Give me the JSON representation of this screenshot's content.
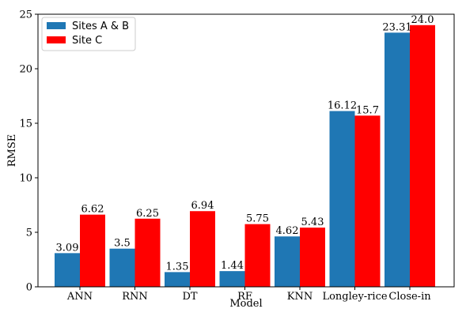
{
  "chart_data": {
    "type": "bar",
    "categories": [
      "ANN",
      "RNN",
      "DT",
      "RF",
      "KNN",
      "Longley-rice",
      "Close-in"
    ],
    "series": [
      {
        "name": "Sites A & B",
        "values": [
          3.09,
          3.5,
          1.35,
          1.44,
          4.62,
          16.12,
          23.31
        ],
        "labels": [
          "3.09",
          "3.5",
          "1.35",
          "1.44",
          "4.62",
          "16.12",
          "23.31"
        ],
        "color": "#1f77b4"
      },
      {
        "name": "Site C",
        "values": [
          6.62,
          6.25,
          6.94,
          5.75,
          5.43,
          15.7,
          24.0
        ],
        "labels": [
          "6.62",
          "6.25",
          "6.94",
          "5.75",
          "5.43",
          "15.7",
          "24.0"
        ],
        "color": "#ff0000"
      }
    ],
    "xlabel": "Model",
    "ylabel": "RMSE",
    "ylim": [
      0,
      25
    ],
    "yticks": [
      "0",
      "5",
      "10",
      "15",
      "20",
      "25"
    ],
    "grid": false,
    "legend_position": "top-left"
  }
}
